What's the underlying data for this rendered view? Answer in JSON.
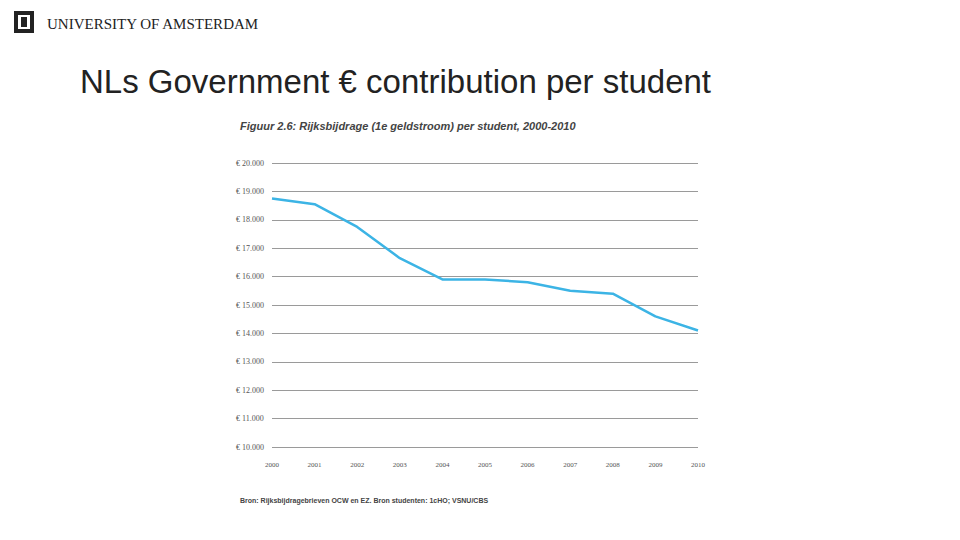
{
  "chart_data": {
    "type": "line",
    "title": "NLs Government € contribution per student",
    "subtitle": "Figuur 2.6: Rijksbijdrage (1e geldstroom) per student, 2000-2010",
    "annotations": [
      "UNIVERSITY OF AMSTERDAM",
      "Bron: Rijksbijdragebrieven OCW en EZ. Bron studenten: 1cHO; VSNU/CBS"
    ],
    "categories": [
      "2000",
      "2001",
      "2002",
      "2003",
      "2004",
      "2005",
      "2006",
      "2007",
      "2008",
      "2009",
      "2010"
    ],
    "values": [
      18750,
      18550,
      17750,
      16650,
      15900,
      15900,
      15800,
      15500,
      15400,
      14600,
      14100
    ],
    "color": "#3cb4e5",
    "ylim": [
      10000,
      20000
    ],
    "yticks": [
      {
        "value": 10000,
        "label": "€ 10.000"
      },
      {
        "value": 11000,
        "label": "€ 11.000"
      },
      {
        "value": 12000,
        "label": "€ 12.000"
      },
      {
        "value": 13000,
        "label": "€ 13.000"
      },
      {
        "value": 14000,
        "label": "€ 14.000"
      },
      {
        "value": 15000,
        "label": "€ 15.000"
      },
      {
        "value": 16000,
        "label": "€ 16.000"
      },
      {
        "value": 17000,
        "label": "€ 17.000"
      },
      {
        "value": 18000,
        "label": "€ 18.000"
      },
      {
        "value": 19000,
        "label": "€ 19.000"
      },
      {
        "value": 20000,
        "label": "€ 20.000"
      }
    ],
    "grid": true
  }
}
